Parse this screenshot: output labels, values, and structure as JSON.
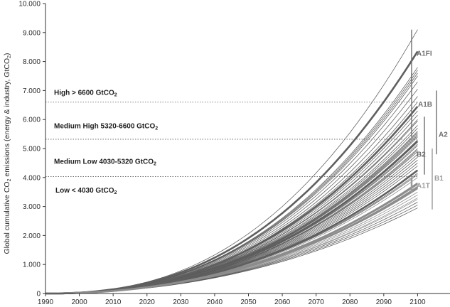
{
  "chart_data": {
    "type": "line",
    "title": "",
    "xlabel": "",
    "ylabel_parts": [
      "Global cumulative CO",
      "2",
      " emissions (energy & industry, GtCO",
      "2",
      ")"
    ],
    "xlim": [
      1990,
      2110
    ],
    "ylim": [
      0,
      10000
    ],
    "x_ticks": [
      1990,
      2000,
      2010,
      2020,
      2030,
      2040,
      2050,
      2060,
      2070,
      2080,
      2090,
      2100
    ],
    "y_ticks": [
      {
        "value": 0,
        "label": "0"
      },
      {
        "value": 1000,
        "label": "1.000"
      },
      {
        "value": 2000,
        "label": "2.000"
      },
      {
        "value": 3000,
        "label": "3.000"
      },
      {
        "value": 4000,
        "label": "4.000"
      },
      {
        "value": 5000,
        "label": "5.000"
      },
      {
        "value": 6000,
        "label": "6.000"
      },
      {
        "value": 7000,
        "label": "7.000"
      },
      {
        "value": 8000,
        "label": "8.000"
      },
      {
        "value": 9000,
        "label": "9.000"
      },
      {
        "value": 10000,
        "label": "10.000"
      }
    ],
    "thresholds": [
      {
        "value": 6600,
        "label_main": "High > 6600 GtCO",
        "label_sub": "2"
      },
      {
        "value": 5320,
        "label_main": "Medium High 5320-6600 GtCO",
        "label_sub": "2"
      },
      {
        "value": 4030,
        "label_main": "Medium Low 4030-5320 GtCO",
        "label_sub": "2"
      },
      {
        "value": null,
        "label_main": "Low < 4030 GtCO",
        "label_sub": "2"
      }
    ],
    "threshold_label_values": [
      6850,
      5700,
      4470,
      3480
    ],
    "scenario_groups": [
      {
        "name": "A1FI",
        "range": [
          7300,
          9100
        ],
        "color": "#6e6e6e"
      },
      {
        "name": "A1B",
        "range": [
          5400,
          7600
        ],
        "color": "#6e6e6e"
      },
      {
        "name": "A2",
        "range": [
          4800,
          7000
        ],
        "color": "#6e6e6e"
      },
      {
        "name": "B2",
        "range": [
          4100,
          6100
        ],
        "color": "#6e6e6e"
      },
      {
        "name": "A1T",
        "range": [
          3500,
          4000
        ],
        "color": "#9a9a9a"
      },
      {
        "name": "B1",
        "range": [
          2900,
          5000
        ],
        "color": "#9a9a9a"
      }
    ],
    "marker_series": [
      {
        "name": "A1FI marker",
        "values_2100": 8350
      },
      {
        "name": "A1B marker",
        "values_2100": 6450
      },
      {
        "name": "A2 marker",
        "values_2100": 5250
      },
      {
        "name": "B2 marker",
        "values_2100": 4250
      },
      {
        "name": "A1T marker",
        "values_2100": 3800
      },
      {
        "name": "B1 marker",
        "values_2100": 3650
      }
    ],
    "scenario_endpoints_2100": [
      9100,
      7800,
      7700,
      7600,
      7500,
      7300,
      7050,
      6800,
      6600,
      6300,
      6150,
      6000,
      5950,
      5800,
      5700,
      5600,
      5550,
      5500,
      5450,
      5400,
      5300,
      5150,
      5100,
      5000,
      4950,
      4900,
      4800,
      4700,
      4600,
      4500,
      4400,
      4150,
      4100,
      4000,
      3750,
      3700,
      3600,
      3500,
      3400,
      3300,
      3250,
      3150,
      3050,
      2950
    ]
  }
}
